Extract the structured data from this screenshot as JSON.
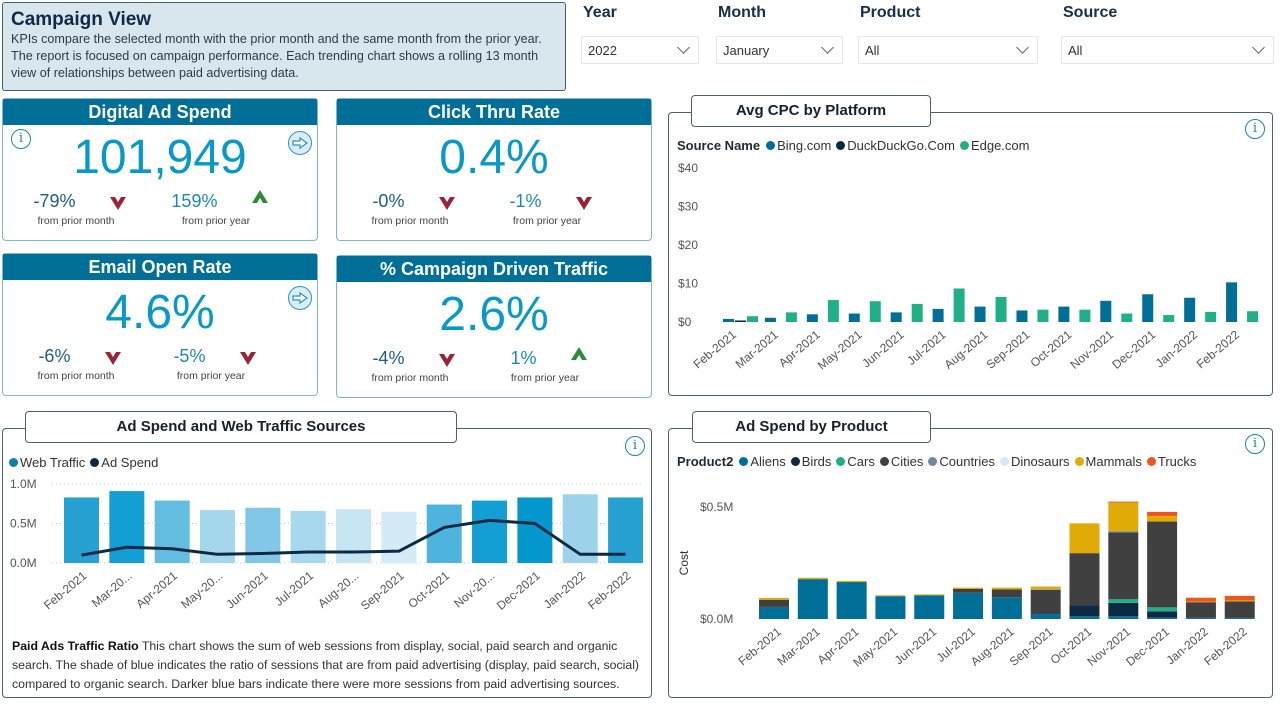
{
  "header": {
    "title": "Campaign View",
    "description": "KPIs compare the selected month with the prior month and the same month from the prior year. The report is focused on campaign performance. Each trending chart shows a rolling 13 month view of relationships between paid advertising data."
  },
  "slicers": [
    {
      "label": "Year",
      "value": "2022"
    },
    {
      "label": "Month",
      "value": "January"
    },
    {
      "label": "Product",
      "value": "All"
    },
    {
      "label": "Source",
      "value": "All"
    }
  ],
  "kpis": [
    {
      "title": "Digital Ad Spend",
      "value": "101,949",
      "prior_month": "-79%",
      "prior_month_trend": "down",
      "prior_year": "159%",
      "prior_year_trend": "up",
      "prior_month_label": "from prior month",
      "prior_year_label": "from prior year",
      "has_info": true,
      "has_nav": true
    },
    {
      "title": "Click Thru Rate",
      "value": "0.4%",
      "prior_month": "-0%",
      "prior_month_trend": "down",
      "prior_year": "-1%",
      "prior_year_trend": "down",
      "prior_month_label": "from prior month",
      "prior_year_label": "from prior year",
      "has_info": false,
      "has_nav": false
    },
    {
      "title": "Email Open Rate",
      "value": "4.6%",
      "prior_month": "-6%",
      "prior_month_trend": "down",
      "prior_year": "-5%",
      "prior_year_trend": "down",
      "prior_month_label": "from prior month",
      "prior_year_label": "from prior year",
      "has_info": false,
      "has_nav": true
    },
    {
      "title": "% Campaign Driven Traffic",
      "value": "2.6%",
      "prior_month": "-4%",
      "prior_month_trend": "down",
      "prior_year": "1%",
      "prior_year_trend": "up",
      "prior_month_label": "from prior month",
      "prior_year_label": "from prior year",
      "has_info": false,
      "has_nav": false
    }
  ],
  "icons": {
    "info": "info-icon",
    "nav": "arrow-right-icon",
    "dropdown": "chevron-down-icon",
    "trend_down": "arrow-down-icon",
    "trend_up": "arrow-up-icon"
  },
  "colors": {
    "kpi_header": "#006f98",
    "kpi_value": "#0899c9",
    "trend_down": "#9b2335",
    "trend_up": "#2e8b3a",
    "header_bg": "#d8e7ee"
  },
  "caption": {
    "bold": "Paid Ads Traffic Ratio",
    "text": " This chart shows the sum of web sessions from display, social, paid search and organic search. The shade of blue indicates the ratio of sessions that are from paid advertising (display, paid search, social) compared to organic search. Darker blue bars indicate there were more sessions from paid advertising sources."
  },
  "chart_data": [
    {
      "id": "avg-cpc",
      "type": "bar",
      "title": "Avg CPC by Platform",
      "legend_title": "Source Name",
      "legend_position": "top-left",
      "categories": [
        "Feb-2021",
        "Mar-2021",
        "Apr-2021",
        "May-2021",
        "Jun-2021",
        "Jul-2021",
        "Aug-2021",
        "Sep-2021",
        "Oct-2021",
        "Nov-2021",
        "Dec-2021",
        "Jan-2022",
        "Feb-2022"
      ],
      "series": [
        {
          "name": "Bing.com",
          "color": "#006f98",
          "values": [
            0.8,
            1.1,
            2.0,
            2.2,
            2.5,
            3.4,
            4.0,
            3.0,
            4.0,
            5.5,
            7.2,
            6.3,
            10.3
          ]
        },
        {
          "name": "DuckDuckGo.Com",
          "color": "#0d2a45",
          "values": [
            0.4,
            0,
            0,
            0,
            0,
            0,
            0,
            0,
            0,
            0,
            0,
            0,
            0
          ]
        },
        {
          "name": "Edge.com",
          "color": "#1fb087",
          "values": [
            1.5,
            2.5,
            5.7,
            5.4,
            4.7,
            8.7,
            6.5,
            3.2,
            3.2,
            2.2,
            1.8,
            2.6,
            2.8
          ]
        }
      ],
      "yticks": [
        "$0",
        "$10",
        "$20",
        "$30",
        "$40"
      ],
      "ylim": [
        0,
        40
      ],
      "xlabel": "",
      "ylabel": ""
    },
    {
      "id": "ad-spend-web-traffic",
      "type": "bar",
      "title": "Ad Spend and Web Traffic Sources",
      "legend_position": "top-left",
      "categories": [
        "Feb-2021",
        "Mar-20...",
        "Apr-2021",
        "May-20...",
        "Jun-2021",
        "Jul-2021",
        "Aug-20...",
        "Sep-2021",
        "Oct-2021",
        "Nov-20...",
        "Dec-2021",
        "Jan-2022",
        "Feb-2022"
      ],
      "series": [
        {
          "name": "Web Traffic",
          "color": "#0f7fa8",
          "type": "bar",
          "values": [
            0.83,
            0.91,
            0.79,
            0.67,
            0.7,
            0.66,
            0.68,
            0.65,
            0.74,
            0.79,
            0.83,
            0.87,
            0.83
          ],
          "shades": [
            "#26a1d1",
            "#139fd3",
            "#62bde0",
            "#a4d6ec",
            "#82c8e6",
            "#a8d8ed",
            "#c6e5f3",
            "#d3ebf6",
            "#4eb4dd",
            "#139fd3",
            "#0497cd",
            "#9cd3eb",
            "#26a1d1"
          ]
        },
        {
          "name": "Ad Spend",
          "color": "#0d2a45",
          "type": "line",
          "values": [
            0.1,
            0.2,
            0.18,
            0.11,
            0.12,
            0.14,
            0.14,
            0.15,
            0.45,
            0.54,
            0.5,
            0.11,
            0.11
          ]
        }
      ],
      "yticks": [
        "0.0M",
        "0.5M",
        "1.0M"
      ],
      "ylim": [
        0,
        1.0
      ],
      "grid": true,
      "xlabel": "",
      "ylabel": ""
    },
    {
      "id": "ad-spend-product",
      "type": "bar",
      "stacked": true,
      "title": "Ad Spend by Product",
      "legend_title": "Product2",
      "legend_position": "top-left",
      "categories": [
        "Feb-2021",
        "Mar-2021",
        "Apr-2021",
        "May-2021",
        "Jun-2021",
        "Jul-2021",
        "Aug-2021",
        "Sep-2021",
        "Oct-2021",
        "Nov-2021",
        "Dec-2021",
        "Jan-2022",
        "Feb-2022"
      ],
      "series": [
        {
          "name": "Aliens",
          "color": "#006f98",
          "values": [
            0.052,
            0.178,
            0.165,
            0.102,
            0.106,
            0.117,
            0.097,
            0.022,
            0.012,
            0.012,
            0.006,
            0.004,
            0.004
          ]
        },
        {
          "name": "Birds",
          "color": "#0d2a45",
          "values": [
            0.002,
            0,
            0,
            0,
            0,
            0,
            0,
            0.003,
            0.05,
            0.06,
            0.028,
            0.002,
            0.002
          ]
        },
        {
          "name": "Cars",
          "color": "#1fb087",
          "values": [
            0,
            0,
            0,
            0,
            0,
            0,
            0,
            0,
            0,
            0.016,
            0.018,
            0,
            0
          ]
        },
        {
          "name": "Cities",
          "color": "#404041",
          "values": [
            0.032,
            0,
            0,
            0,
            0,
            0.017,
            0.035,
            0.105,
            0.232,
            0.298,
            0.383,
            0.069,
            0.072
          ]
        },
        {
          "name": "Countries",
          "color": "#6c8c9a",
          "values": [
            0,
            0,
            0,
            0,
            0,
            0,
            0,
            0.003,
            0,
            0.006,
            0,
            0,
            0
          ]
        },
        {
          "name": "Dinosaurs",
          "color": "#d6e9f2",
          "values": [
            0,
            0,
            0,
            0,
            0,
            0,
            0,
            0,
            0,
            0,
            0,
            0,
            0
          ]
        },
        {
          "name": "Mammals",
          "color": "#e0ab06",
          "values": [
            0.008,
            0.006,
            0.005,
            0.004,
            0.004,
            0.006,
            0.008,
            0.012,
            0.133,
            0.128,
            0.025,
            0.003,
            0.005
          ]
        },
        {
          "name": "Trucks",
          "color": "#ef5520",
          "values": [
            0,
            0,
            0,
            0,
            0,
            0,
            0,
            0,
            0,
            0.004,
            0.018,
            0.017,
            0.02
          ]
        }
      ],
      "yticks": [
        "$0.0M",
        "$0.5M"
      ],
      "ylim": [
        0,
        0.5
      ],
      "xlabel": "",
      "ylabel": "Cost"
    }
  ]
}
